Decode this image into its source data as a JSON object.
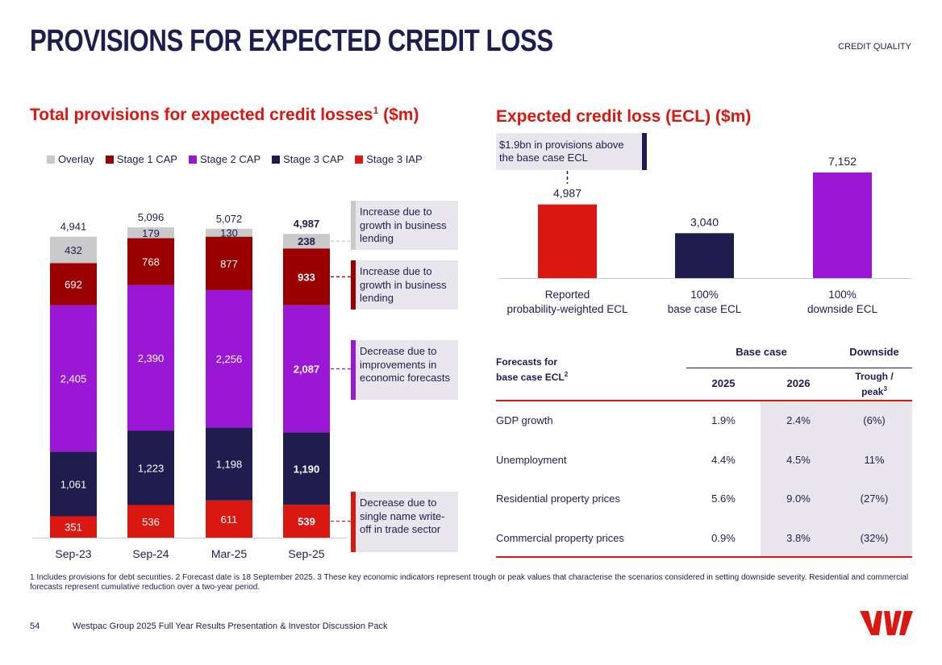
{
  "header": {
    "title": "PROVISIONS FOR EXPECTED CREDIT LOSS",
    "section_tag": "CREDIT QUALITY"
  },
  "left_chart": {
    "title": "Total provisions for expected credit losses",
    "title_sup": "1",
    "title_unit": " ($m)"
  },
  "right_chart": {
    "title": "Expected credit loss (ECL) ($m)",
    "callout": "$1.9bn in provisions above the base case ECL"
  },
  "callouts": [
    {
      "text": "Increase due to growth in business lending",
      "color": "#c9c9c9"
    },
    {
      "text": "Increase due to growth in business lending",
      "color": "#9b0000"
    },
    {
      "text": "Decrease due to improvements in economic forecasts",
      "color": "#9b17d6"
    },
    {
      "text": "Decrease due to single name write-off in trade sector",
      "color": "#da1710"
    }
  ],
  "chart_data": [
    {
      "type": "bar",
      "stacked": true,
      "title": "Total provisions for expected credit losses1 ($m)",
      "categories": [
        "Sep-23",
        "Sep-24",
        "Mar-25",
        "Sep-25"
      ],
      "totals": [
        "4,941",
        "5,096",
        "5,072",
        "4,987"
      ],
      "series": [
        {
          "name": "Stage 3 IAP",
          "color": "#da1710",
          "values": [
            351,
            536,
            611,
            539
          ],
          "labels": [
            "351",
            "536",
            "611",
            "539"
          ]
        },
        {
          "name": "Stage 3 CAP",
          "color": "#201c4e",
          "values": [
            1061,
            1223,
            1198,
            1190
          ],
          "labels": [
            "1,061",
            "1,223",
            "1,198",
            "1,190"
          ]
        },
        {
          "name": "Stage 2 CAP",
          "color": "#9b17d6",
          "values": [
            2405,
            2390,
            2256,
            2087
          ],
          "labels": [
            "2,405",
            "2,390",
            "2,256",
            "2,087"
          ]
        },
        {
          "name": "Stage 1 CAP",
          "color": "#9b0000",
          "values": [
            692,
            768,
            877,
            933
          ],
          "labels": [
            "692",
            "768",
            "877",
            "933"
          ]
        },
        {
          "name": "Overlay",
          "color": "#c9c9c9",
          "values": [
            432,
            179,
            130,
            238
          ],
          "labels": [
            "432",
            "179",
            "130",
            "238"
          ]
        }
      ],
      "legend": [
        "Overlay",
        "Stage 1 CAP",
        "Stage 2 CAP",
        "Stage 3 CAP",
        "Stage 3 IAP"
      ]
    },
    {
      "type": "bar",
      "title": "Expected credit loss (ECL) ($m)",
      "categories": [
        "Reported probability-weighted ECL",
        "100% base case ECL",
        "100% downside ECL"
      ],
      "category_lines": [
        [
          "Reported",
          "probability-weighted ECL"
        ],
        [
          "100%",
          "base case ECL"
        ],
        [
          "100%",
          "downside ECL"
        ]
      ],
      "values": [
        4987,
        3040,
        7152
      ],
      "labels": [
        "4,987",
        "3,040",
        "7,152"
      ],
      "colors": [
        "#da1710",
        "#201c4e",
        "#9b17d6"
      ]
    },
    {
      "type": "table",
      "row_header": [
        "Forecasts for",
        "base case ECL"
      ],
      "row_header_sup": "2",
      "group_headers": [
        "Base case",
        "Downside"
      ],
      "columns": [
        "2025",
        "2026",
        "Trough /",
        "peak"
      ],
      "columns_sup": "3",
      "rows": [
        {
          "label": "GDP growth",
          "values": [
            "1.9%",
            "2.4%",
            "(6%)"
          ]
        },
        {
          "label": "Unemployment",
          "values": [
            "4.4%",
            "4.5%",
            "11%"
          ]
        },
        {
          "label": "Residential property prices",
          "values": [
            "5.6%",
            "9.0%",
            "(27%)"
          ]
        },
        {
          "label": "Commercial property prices",
          "values": [
            "0.9%",
            "3.8%",
            "(32%)"
          ]
        }
      ]
    }
  ],
  "footnote": "1 Includes provisions for debt securities. 2 Forecast date is 18 September 2025. 3 These key economic indicators represent trough or peak values that characterise the scenarios considered in setting downside severity. Residential and commercial forecasts represent cumulative reduction over a two-year period.",
  "footer": {
    "page_number": "54",
    "text": "Westpac Group 2025 Full Year Results Presentation & Investor Discussion Pack"
  },
  "logo": {
    "text": "W",
    "color": "#da1710"
  }
}
